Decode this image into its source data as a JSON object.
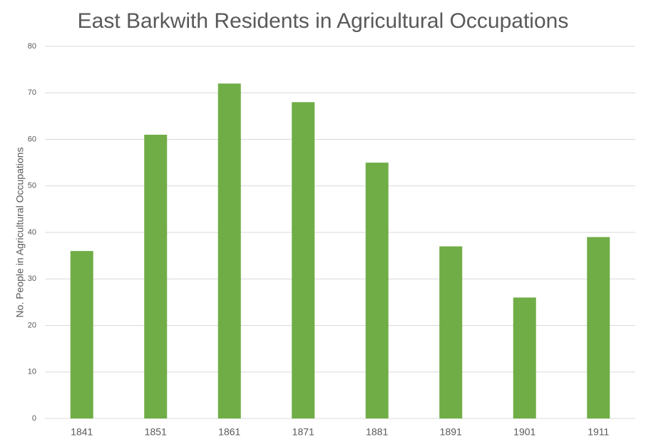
{
  "chart_data": {
    "type": "bar",
    "title": "East Barkwith Residents in Agricultural Occupations",
    "y_label": "No. People in Agricultural Occupations",
    "categories": [
      "1841",
      "1851",
      "1861",
      "1871",
      "1881",
      "1891",
      "1901",
      "1911"
    ],
    "values": [
      36,
      61,
      72,
      68,
      55,
      37,
      26,
      39
    ],
    "color": "#70ad47",
    "ylim": [
      0,
      80
    ],
    "yticks": [
      0,
      10,
      20,
      30,
      40,
      50,
      60,
      70,
      80
    ],
    "grid": true
  }
}
